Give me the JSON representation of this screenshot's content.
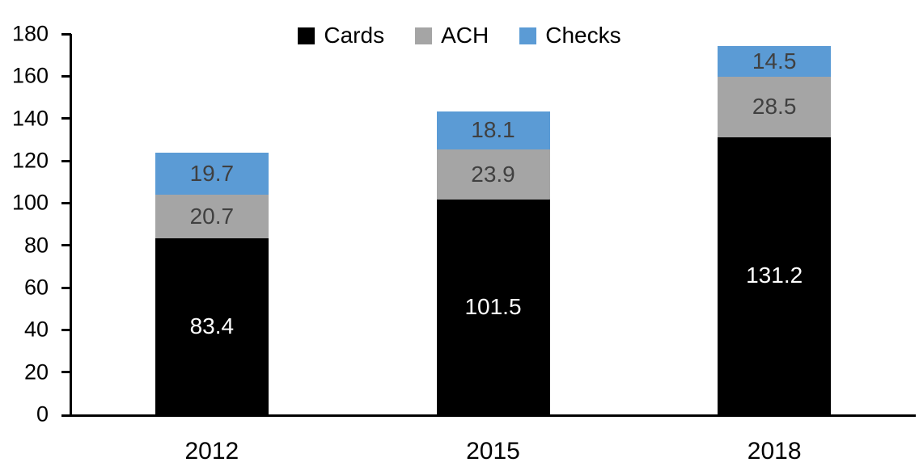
{
  "chart_data": {
    "type": "bar",
    "stacked": true,
    "title": "",
    "xlabel": "",
    "ylabel": "",
    "categories": [
      "2012",
      "2015",
      "2018"
    ],
    "series": [
      {
        "name": "Cards",
        "color": "#000000",
        "label_color": "#FFFFFF",
        "values": [
          83.4,
          101.5,
          131.2
        ]
      },
      {
        "name": "ACH",
        "color": "#A5A5A5",
        "label_color": "#404040",
        "values": [
          20.7,
          23.9,
          28.5
        ]
      },
      {
        "name": "Checks",
        "color": "#5B9BD5",
        "label_color": "#404040",
        "values": [
          19.7,
          18.1,
          14.5
        ]
      }
    ],
    "totals": [
      123.8,
      143.5,
      174.2
    ],
    "ylim": [
      0,
      180
    ],
    "yticks": [
      0,
      20,
      40,
      60,
      80,
      100,
      120,
      140,
      160,
      180
    ],
    "legend_position": "top-center",
    "grid": false,
    "axis_color": "#000000",
    "background_color": "#FFFFFF"
  }
}
